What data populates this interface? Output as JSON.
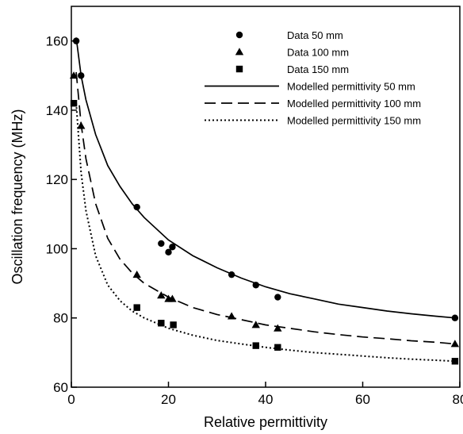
{
  "chart_data": {
    "type": "scatter",
    "title": "",
    "xlabel": "Relative permittivity",
    "ylabel": "Oscillation frequency (MHz)",
    "xlim": [
      0,
      80
    ],
    "ylim": [
      60,
      170
    ],
    "xticks": [
      0,
      20,
      40,
      60,
      80
    ],
    "yticks": [
      60,
      80,
      100,
      120,
      140,
      160
    ],
    "grid": false,
    "legend_position": "top-right",
    "series": [
      {
        "name": "Data 50 mm",
        "kind": "points",
        "marker": "circle",
        "points": [
          [
            1,
            160
          ],
          [
            2,
            150
          ],
          [
            13.5,
            112
          ],
          [
            18.5,
            101.5
          ],
          [
            20,
            99
          ],
          [
            20.8,
            100.5
          ],
          [
            33,
            92.5
          ],
          [
            38,
            89.5
          ],
          [
            42.5,
            86
          ],
          [
            79,
            80
          ]
        ]
      },
      {
        "name": "Data 100 mm",
        "kind": "points",
        "marker": "triangle",
        "points": [
          [
            0.5,
            150
          ],
          [
            2,
            135.5
          ],
          [
            13.5,
            92.5
          ],
          [
            18.5,
            86.5
          ],
          [
            20,
            85.5
          ],
          [
            20.8,
            85.5
          ],
          [
            33,
            80.5
          ],
          [
            38,
            78
          ],
          [
            42.5,
            77
          ],
          [
            79,
            72.5
          ]
        ]
      },
      {
        "name": "Data 150 mm",
        "kind": "points",
        "marker": "square",
        "points": [
          [
            0.5,
            142
          ],
          [
            13.5,
            83
          ],
          [
            18.5,
            78.5
          ],
          [
            21,
            78
          ],
          [
            38,
            72
          ],
          [
            42.5,
            71.5
          ],
          [
            79,
            67.5
          ]
        ]
      },
      {
        "name": "Modelled permittivity 50 mm",
        "kind": "line",
        "dash": "solid",
        "points": [
          [
            1,
            161
          ],
          [
            2,
            150
          ],
          [
            3,
            143
          ],
          [
            5,
            133
          ],
          [
            7.5,
            124
          ],
          [
            10,
            118
          ],
          [
            12.5,
            113
          ],
          [
            15,
            109
          ],
          [
            20,
            102.5
          ],
          [
            25,
            98
          ],
          [
            30,
            94.5
          ],
          [
            35,
            91.5
          ],
          [
            40,
            89
          ],
          [
            45,
            87
          ],
          [
            50,
            85.5
          ],
          [
            55,
            84
          ],
          [
            60,
            83
          ],
          [
            65,
            82
          ],
          [
            70,
            81.2
          ],
          [
            75,
            80.5
          ],
          [
            79,
            80
          ]
        ]
      },
      {
        "name": "Modelled permittivity 100 mm",
        "kind": "line",
        "dash": "dashed",
        "points": [
          [
            1,
            151
          ],
          [
            2,
            136
          ],
          [
            3,
            126
          ],
          [
            5,
            113
          ],
          [
            7.5,
            103
          ],
          [
            10,
            97
          ],
          [
            12.5,
            93
          ],
          [
            15,
            90
          ],
          [
            20,
            86
          ],
          [
            25,
            83
          ],
          [
            30,
            81
          ],
          [
            35,
            79.5
          ],
          [
            40,
            78
          ],
          [
            45,
            77
          ],
          [
            50,
            76
          ],
          [
            55,
            75.2
          ],
          [
            60,
            74.5
          ],
          [
            65,
            74
          ],
          [
            70,
            73.4
          ],
          [
            75,
            73
          ],
          [
            79,
            72.5
          ]
        ]
      },
      {
        "name": "Modelled permittivity 150 mm",
        "kind": "line",
        "dash": "dotted",
        "points": [
          [
            1,
            142
          ],
          [
            2,
            122
          ],
          [
            3,
            111
          ],
          [
            5,
            98
          ],
          [
            7.5,
            89.5
          ],
          [
            10,
            85
          ],
          [
            12.5,
            82
          ],
          [
            15,
            80
          ],
          [
            20,
            77
          ],
          [
            25,
            75
          ],
          [
            30,
            73.5
          ],
          [
            35,
            72.5
          ],
          [
            40,
            71.5
          ],
          [
            45,
            70.7
          ],
          [
            50,
            70
          ],
          [
            55,
            69.5
          ],
          [
            60,
            69
          ],
          [
            65,
            68.5
          ],
          [
            70,
            68.1
          ],
          [
            75,
            67.8
          ],
          [
            79,
            67.5
          ]
        ]
      }
    ]
  }
}
